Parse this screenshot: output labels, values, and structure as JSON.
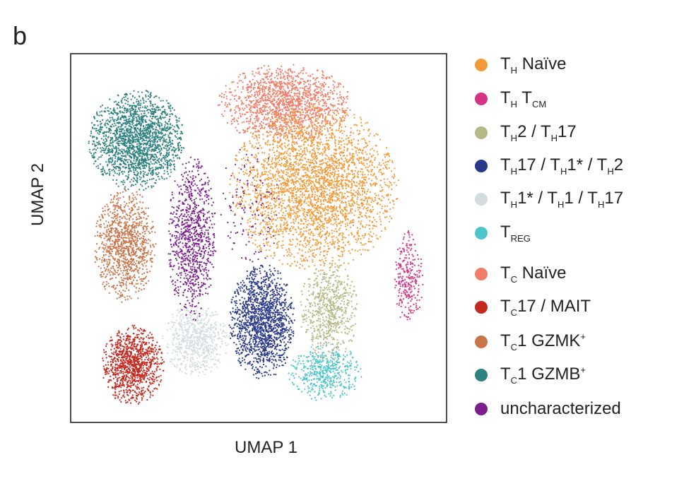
{
  "panel_label": "b",
  "chart_data": {
    "type": "scatter",
    "xlabel": "UMAP 1",
    "ylabel": "UMAP 2",
    "grid": false,
    "ticks": false,
    "legend_position": "right",
    "series": [
      {
        "key": "th_naive",
        "color": "#f39a3a",
        "parts": [
          {
            "t": "T"
          },
          {
            "sub": "H"
          },
          {
            "t": " Naïve"
          }
        ],
        "clusters": [
          {
            "cx": 0.65,
            "cy": 0.64,
            "rx": 0.23,
            "ry": 0.23,
            "n": 3200
          }
        ]
      },
      {
        "key": "th_tcm",
        "color": "#d63384",
        "parts": [
          {
            "t": "T"
          },
          {
            "sub": "H"
          },
          {
            "t": " T"
          },
          {
            "sub": "CM"
          }
        ],
        "clusters": [
          {
            "cx": 0.905,
            "cy": 0.39,
            "rx": 0.04,
            "ry": 0.13,
            "n": 260
          }
        ]
      },
      {
        "key": "th2_th17",
        "color": "#b5b986",
        "parts": [
          {
            "t": "T"
          },
          {
            "sub": "H"
          },
          {
            "t": "2 / T"
          },
          {
            "sub": "H"
          },
          {
            "t": "17"
          }
        ],
        "clusters": [
          {
            "cx": 0.69,
            "cy": 0.3,
            "rx": 0.08,
            "ry": 0.14,
            "n": 650
          }
        ]
      },
      {
        "key": "th17_th1_th2",
        "color": "#2a3a8a",
        "parts": [
          {
            "t": "T"
          },
          {
            "sub": "H"
          },
          {
            "t": "17 / T"
          },
          {
            "sub": "H"
          },
          {
            "t": "1* / T"
          },
          {
            "sub": "H"
          },
          {
            "t": "2"
          }
        ],
        "clusters": [
          {
            "cx": 0.51,
            "cy": 0.27,
            "rx": 0.09,
            "ry": 0.16,
            "n": 1500
          }
        ]
      },
      {
        "key": "th1_th1_th17",
        "color": "#d3dde0",
        "parts": [
          {
            "t": "T"
          },
          {
            "sub": "H"
          },
          {
            "t": "1* / T"
          },
          {
            "sub": "H"
          },
          {
            "t": "1 / T"
          },
          {
            "sub": "H"
          },
          {
            "t": "17"
          }
        ],
        "clusters": [
          {
            "cx": 0.33,
            "cy": 0.22,
            "rx": 0.09,
            "ry": 0.1,
            "n": 700
          }
        ]
      },
      {
        "key": "treg",
        "color": "#4ec5cc",
        "parts": [
          {
            "t": "T"
          },
          {
            "sub": "REG"
          }
        ],
        "clusters": [
          {
            "cx": 0.68,
            "cy": 0.13,
            "rx": 0.1,
            "ry": 0.08,
            "n": 480
          }
        ]
      },
      {
        "key": "tc_naive",
        "color": "#f07e6a",
        "parts": [
          {
            "t": "T"
          },
          {
            "sub": "C"
          },
          {
            "t": " Naïve"
          }
        ],
        "clusters": [
          {
            "cx": 0.57,
            "cy": 0.87,
            "rx": 0.18,
            "ry": 0.11,
            "n": 1500
          }
        ]
      },
      {
        "key": "tc17_mait",
        "color": "#c4291f",
        "parts": [
          {
            "t": "T"
          },
          {
            "sub": "C"
          },
          {
            "t": "17 / MAIT"
          }
        ],
        "clusters": [
          {
            "cx": 0.16,
            "cy": 0.15,
            "rx": 0.085,
            "ry": 0.11,
            "n": 1050
          }
        ]
      },
      {
        "key": "tc1_gzmk",
        "color": "#c9754a",
        "parts": [
          {
            "t": "T"
          },
          {
            "sub": "C"
          },
          {
            "t": "1 GZMK"
          },
          {
            "sup": "+"
          }
        ],
        "clusters": [
          {
            "cx": 0.14,
            "cy": 0.48,
            "rx": 0.085,
            "ry": 0.16,
            "n": 1050
          }
        ]
      },
      {
        "key": "tc1_gzmb",
        "color": "#2e8280",
        "parts": [
          {
            "t": "T"
          },
          {
            "sub": "C"
          },
          {
            "t": "1 GZMB"
          },
          {
            "sup": "+"
          }
        ],
        "clusters": [
          {
            "cx": 0.17,
            "cy": 0.77,
            "rx": 0.13,
            "ry": 0.14,
            "n": 1900
          }
        ]
      },
      {
        "key": "uncharacterized",
        "color": "#7b1f8c",
        "parts": [
          {
            "t": "uncharacterized"
          }
        ],
        "clusters": [
          {
            "cx": 0.32,
            "cy": 0.5,
            "rx": 0.065,
            "ry": 0.23,
            "n": 900
          },
          {
            "cx": 0.47,
            "cy": 0.58,
            "rx": 0.09,
            "ry": 0.18,
            "n": 120
          }
        ]
      }
    ]
  }
}
